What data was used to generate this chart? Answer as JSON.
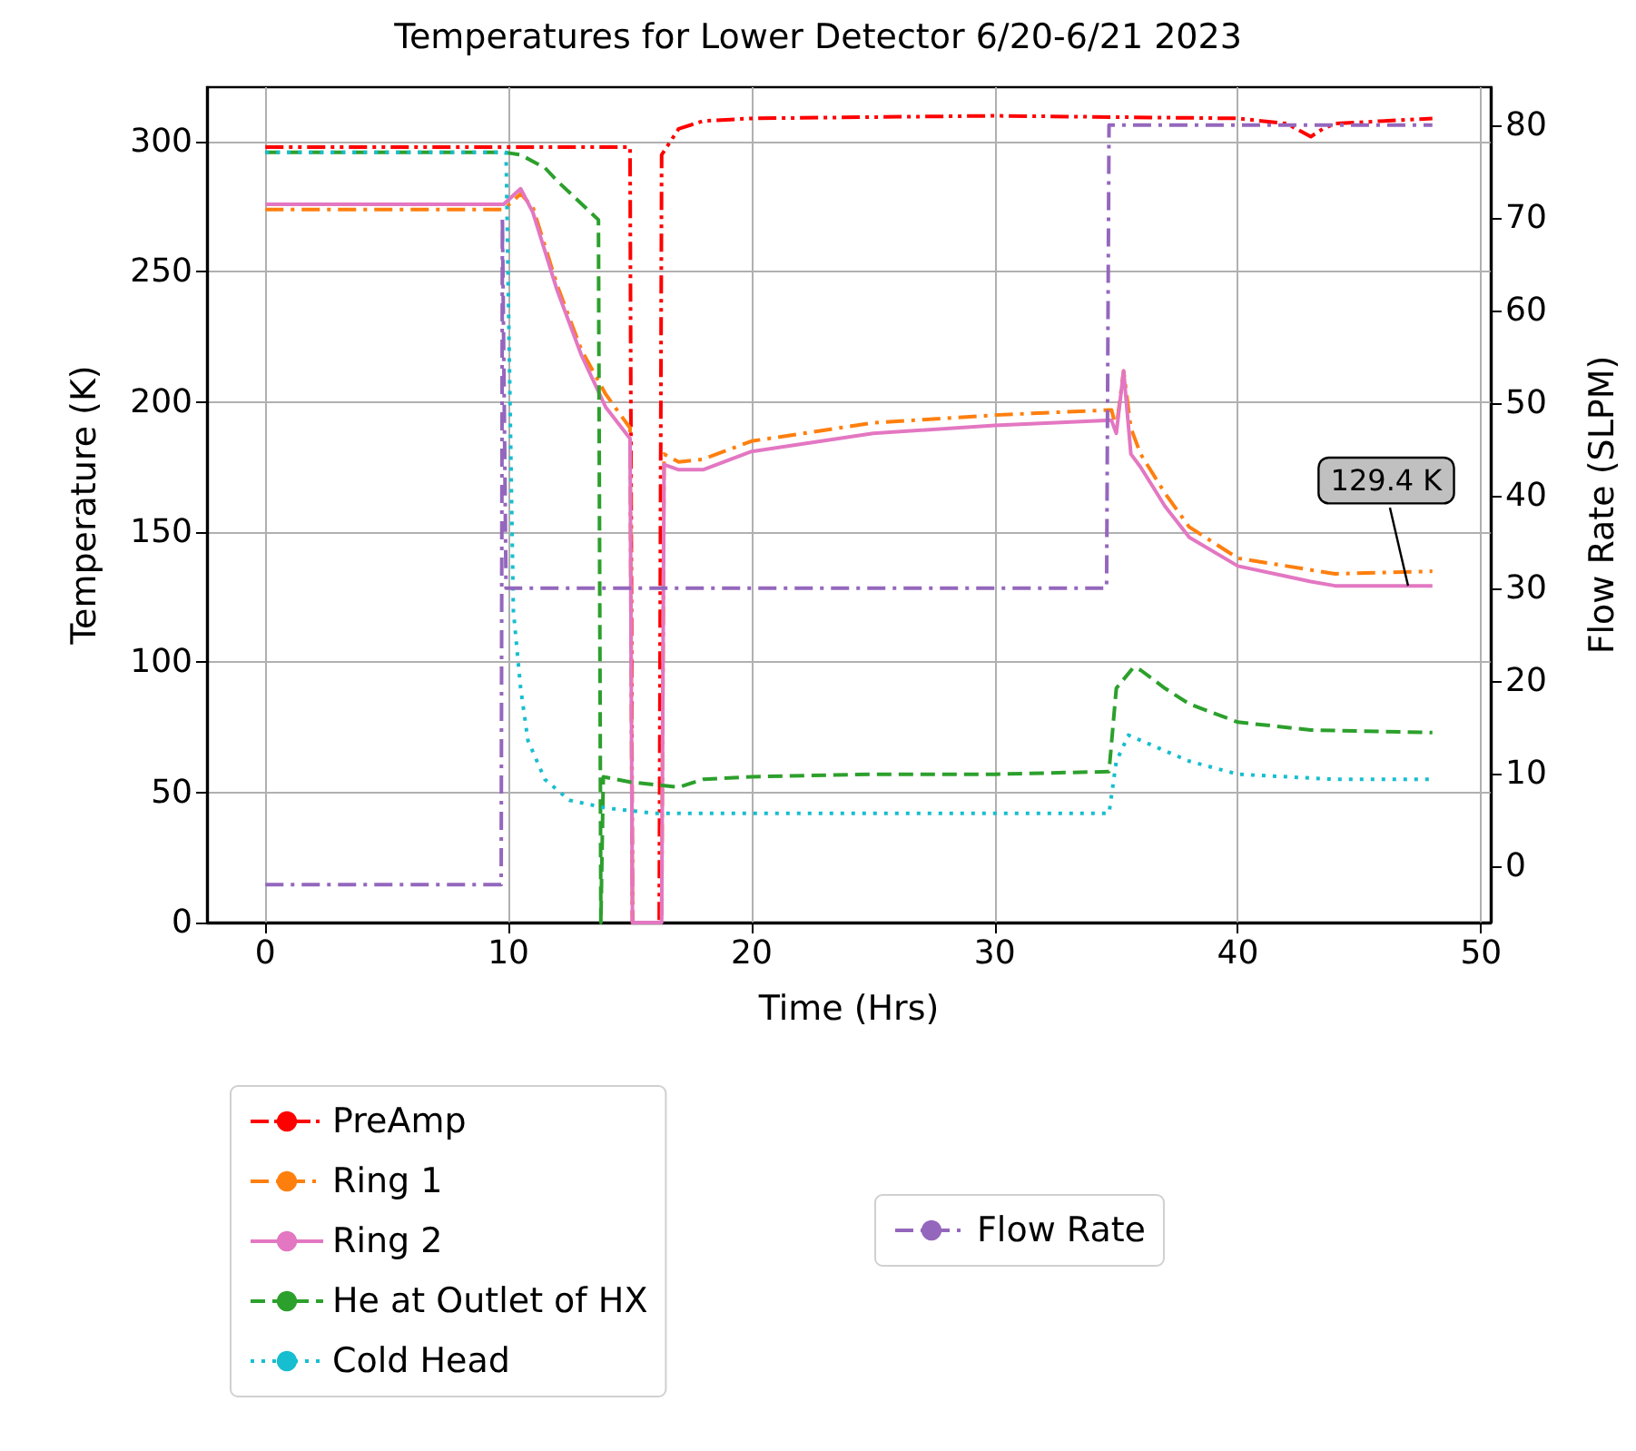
{
  "chart_data": {
    "type": "line",
    "title": "Temperatures for Lower Detector 6/20-6/21 2023",
    "xlabel": "Time (Hrs)",
    "ylabel": "Temperature (K)",
    "y2label": "Flow Rate (SLPM)",
    "xlim": [
      -2.4,
      50.4
    ],
    "xticks": [
      0,
      10,
      20,
      30,
      40,
      50
    ],
    "ylim": [
      0,
      321
    ],
    "yticks": [
      0,
      50,
      100,
      150,
      200,
      250,
      300
    ],
    "y2lim": [
      -6.1,
      84.1
    ],
    "y2ticks": [
      0,
      10,
      20,
      30,
      40,
      50,
      60,
      70,
      80
    ],
    "grid": true,
    "legend": "bottom",
    "marker": "none",
    "annotations": [
      {
        "text": "129.4 K",
        "x": 47,
        "y": 129.4
      }
    ],
    "series": [
      {
        "name": "PreAmp",
        "color": "#ff0000",
        "line_style": "dashdotdot",
        "x": [
          0,
          15,
          15.1,
          16.2,
          16.3,
          17,
          18,
          20,
          30,
          40,
          42,
          43,
          43.5,
          44,
          48
        ],
        "values": [
          298,
          298,
          0,
          0,
          295,
          305,
          308,
          309,
          310,
          309,
          307,
          302,
          305,
          307,
          309
        ]
      },
      {
        "name": "Ring 1",
        "color": "#ff7f0e",
        "line_style": "dashdot",
        "x": [
          0,
          9.8,
          10.5,
          11,
          12,
          13,
          14,
          15,
          15.1,
          16.3,
          16.4,
          17,
          18,
          20,
          25,
          30,
          34.8,
          35,
          35.3,
          35.6,
          36,
          37,
          38,
          40,
          42,
          44,
          48
        ],
        "values": [
          274,
          274,
          280,
          275,
          245,
          220,
          203,
          190,
          0,
          0,
          180,
          177,
          178,
          185,
          192,
          195,
          197,
          190,
          212,
          190,
          180,
          165,
          152,
          140,
          137,
          134,
          135
        ]
      },
      {
        "name": "Ring 2",
        "color": "#e377c2",
        "line_style": "solid",
        "x": [
          0,
          9.8,
          10.5,
          11,
          12,
          13,
          14,
          15,
          15.1,
          16.3,
          16.4,
          17,
          18,
          20,
          25,
          30,
          34.8,
          35,
          35.3,
          35.6,
          36,
          37,
          38,
          40,
          42,
          43,
          44,
          48
        ],
        "values": [
          276,
          276,
          282,
          273,
          243,
          218,
          198,
          186,
          0,
          0,
          176,
          174,
          174,
          181,
          188,
          191,
          193,
          188,
          212,
          180,
          175,
          160,
          148,
          137,
          133,
          131,
          129.4,
          129.4
        ]
      },
      {
        "name": "He at Outlet of HX",
        "color": "#2ca02c",
        "line_style": "dashed",
        "x": [
          0,
          9.8,
          10.5,
          11.5,
          12,
          13.7,
          13.8,
          13.9,
          15,
          17,
          18,
          20,
          25,
          30,
          34.7,
          35,
          35.7,
          36,
          37,
          38,
          40,
          43,
          48
        ],
        "values": [
          296,
          296,
          295,
          290,
          285,
          270,
          0,
          56,
          54,
          52,
          55,
          56,
          57,
          57,
          58,
          90,
          98,
          97,
          90,
          84,
          77,
          74,
          73
        ]
      },
      {
        "name": "Cold Head",
        "color": "#17becf",
        "line_style": "dotted",
        "x": [
          0,
          9.9,
          10.2,
          10.5,
          10.8,
          11.5,
          12.5,
          14,
          16,
          20,
          30,
          34.7,
          35,
          35.5,
          36,
          38,
          40,
          44,
          48
        ],
        "values": [
          296,
          296,
          120,
          90,
          70,
          55,
          47,
          44,
          42,
          42,
          42,
          42,
          62,
          72,
          70,
          62,
          57,
          55,
          55
        ]
      },
      {
        "name": "Flow Rate",
        "color": "#9467bd",
        "line_style": "dashdot",
        "axis": "y2",
        "x": [
          0,
          9.7,
          9.75,
          9.9,
          34.6,
          34.7,
          48
        ],
        "values": [
          -2,
          -2,
          70,
          30,
          30,
          80,
          80
        ]
      }
    ]
  }
}
